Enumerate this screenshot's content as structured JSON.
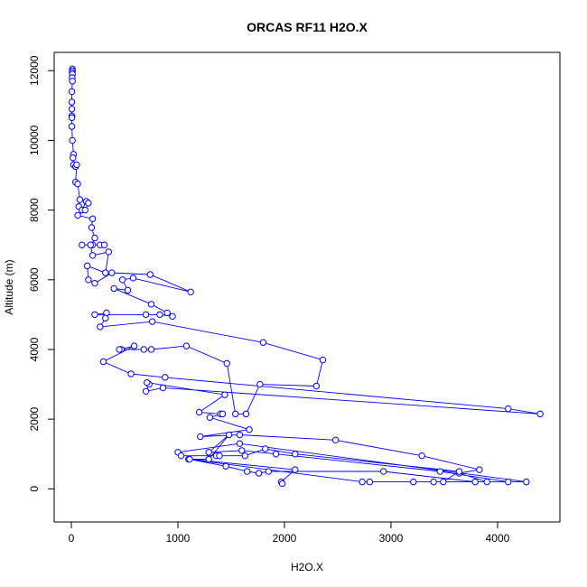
{
  "chart_data": {
    "type": "line",
    "title": "ORCAS RF11 H2O.X",
    "x_label": "H2O.X",
    "y_label": "Altitude (m)",
    "color": "#0000ff",
    "markers": "open-circle",
    "x": [
      10,
      10,
      8,
      10,
      8,
      10,
      5,
      5,
      5,
      5,
      5,
      5,
      10,
      20,
      15,
      20,
      40,
      50,
      40,
      60,
      80,
      70,
      100,
      140,
      160,
      130,
      60,
      200,
      190,
      220,
      200,
      100,
      270,
      310,
      180,
      200,
      350,
      320,
      150,
      160,
      220,
      380,
      740,
      1120,
      580,
      480,
      530,
      400,
      750,
      900,
      950,
      830,
      700,
      220,
      330,
      320,
      270,
      760,
      1800,
      2360,
      2300,
      1770,
      1640,
      1540,
      1460,
      1080,
      750,
      680,
      470,
      450,
      590,
      300,
      560,
      880,
      4100,
      4400,
      860,
      700,
      730,
      710,
      1440,
      1200,
      1400,
      1420,
      1300,
      1670,
      1210,
      1580,
      2480,
      3290,
      3830,
      3640,
      3900,
      4270,
      1580,
      1000,
      1030,
      1360,
      1390,
      1630,
      1820,
      2100,
      3640,
      3490,
      3400,
      2800,
      2730,
      1100,
      1290,
      1480,
      1290,
      1600,
      1920,
      3460,
      4100,
      3210,
      3790,
      2930,
      1850,
      1760,
      1650,
      1450,
      1110,
      2100,
      1970,
      1980
    ],
    "values": [
      12050,
      12000,
      11950,
      11900,
      11800,
      11700,
      11400,
      11100,
      10900,
      10700,
      10650,
      10400,
      10000,
      9600,
      9500,
      9300,
      9250,
      9300,
      8800,
      8750,
      8300,
      8100,
      8000,
      8250,
      8200,
      8000,
      7850,
      7750,
      7500,
      7200,
      7000,
      7000,
      7000,
      7000,
      7000,
      6700,
      6800,
      6200,
      6400,
      6000,
      5900,
      6200,
      6150,
      5650,
      6050,
      6000,
      5700,
      5750,
      5300,
      5050,
      4950,
      5000,
      5000,
      5000,
      5050,
      4900,
      4650,
      4800,
      4200,
      3700,
      2950,
      3000,
      2150,
      2150,
      3600,
      4100,
      4000,
      4000,
      4000,
      4000,
      4100,
      3650,
      3300,
      3200,
      2300,
      2150,
      2900,
      2800,
      3000,
      3050,
      2700,
      2200,
      2150,
      2150,
      2050,
      1700,
      1500,
      1550,
      1400,
      950,
      550,
      450,
      200,
      200,
      1300,
      1050,
      950,
      950,
      950,
      950,
      1150,
      1000,
      500,
      200,
      200,
      200,
      200,
      850,
      850,
      1550,
      1050,
      1100,
      1000,
      500,
      200,
      200,
      200,
      500,
      500,
      450,
      500,
      650,
      850,
      550,
      200,
      150
    ],
    "xlim": [
      -161,
      4585
    ],
    "ylim": [
      -950,
      12525
    ],
    "xticks": [
      0,
      1000,
      2000,
      3000,
      4000
    ],
    "yticks": [
      0,
      2000,
      4000,
      6000,
      8000,
      10000,
      12000
    ]
  }
}
